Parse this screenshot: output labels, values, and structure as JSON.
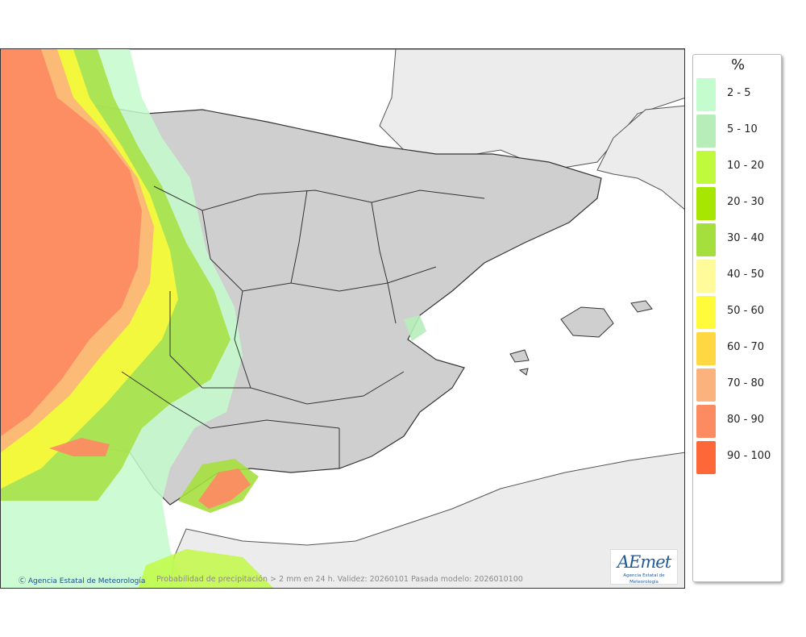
{
  "legend": {
    "title": "%",
    "items": [
      {
        "label": "2 - 5",
        "color": "#c4fccd"
      },
      {
        "label": "5 - 10",
        "color": "#b6edb9"
      },
      {
        "label": "10 - 20",
        "color": "#c0fa3c"
      },
      {
        "label": "20 - 30",
        "color": "#a6e600"
      },
      {
        "label": "30 - 40",
        "color": "#a5df3e"
      },
      {
        "label": "40 - 50",
        "color": "#fffb9b"
      },
      {
        "label": "50 - 60",
        "color": "#fffb3a"
      },
      {
        "label": "60 - 70",
        "color": "#fed842"
      },
      {
        "label": "70 - 80",
        "color": "#fcb27c"
      },
      {
        "label": "80 - 90",
        "color": "#fd8b62"
      },
      {
        "label": "90 - 100",
        "color": "#fe6738"
      }
    ]
  },
  "footer": {
    "credit": "Agencia Estatal de Meteorología",
    "caption": "Probabilidad de precipitación > 2 mm en 24 h. Validez: 20260101 Pasada modelo: 2026010100"
  },
  "logo": {
    "word": "AEmet",
    "subtitle": "Agencia Estatal de Meteorología"
  },
  "colors": {
    "sea": "#ffffff",
    "land_foreign": "#ececec",
    "land_iberia": "#cfcfcf",
    "border": "#333333"
  }
}
